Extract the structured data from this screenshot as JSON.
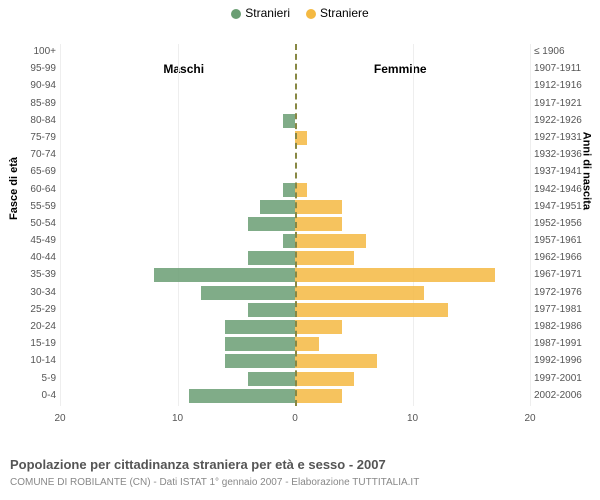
{
  "chart": {
    "type": "population-pyramid",
    "legend": [
      {
        "label": "Stranieri",
        "color": "#6a9e73"
      },
      {
        "label": "Straniere",
        "color": "#f4b942"
      }
    ],
    "side_titles": {
      "left": "Maschi",
      "right": "Femmine"
    },
    "y_left_label": "Fasce di età",
    "y_right_label": "Anni di nascita",
    "x_ticks": [
      20,
      10,
      0,
      10,
      20
    ],
    "x_max": 20,
    "colors": {
      "male_bar": "#6a9e73",
      "female_bar": "#f4b942",
      "grid": "#eeeeee",
      "center_line": "#888844",
      "background": "#ffffff",
      "text_muted": "#555555"
    },
    "bar_opacity": 0.85,
    "fontsize": {
      "tick": 10,
      "legend": 12,
      "side_title": 12,
      "caption": 13,
      "subcaption": 10,
      "axis_label": 11
    },
    "rows": [
      {
        "age": "100+",
        "birth": "≤ 1906",
        "m": 0,
        "f": 0
      },
      {
        "age": "95-99",
        "birth": "1907-1911",
        "m": 0,
        "f": 0
      },
      {
        "age": "90-94",
        "birth": "1912-1916",
        "m": 0,
        "f": 0
      },
      {
        "age": "85-89",
        "birth": "1917-1921",
        "m": 0,
        "f": 0
      },
      {
        "age": "80-84",
        "birth": "1922-1926",
        "m": 1,
        "f": 0
      },
      {
        "age": "75-79",
        "birth": "1927-1931",
        "m": 0,
        "f": 1
      },
      {
        "age": "70-74",
        "birth": "1932-1936",
        "m": 0,
        "f": 0
      },
      {
        "age": "65-69",
        "birth": "1937-1941",
        "m": 0,
        "f": 0
      },
      {
        "age": "60-64",
        "birth": "1942-1946",
        "m": 1,
        "f": 1
      },
      {
        "age": "55-59",
        "birth": "1947-1951",
        "m": 3,
        "f": 4
      },
      {
        "age": "50-54",
        "birth": "1952-1956",
        "m": 4,
        "f": 4
      },
      {
        "age": "45-49",
        "birth": "1957-1961",
        "m": 1,
        "f": 6
      },
      {
        "age": "40-44",
        "birth": "1962-1966",
        "m": 4,
        "f": 5
      },
      {
        "age": "35-39",
        "birth": "1967-1971",
        "m": 12,
        "f": 17
      },
      {
        "age": "30-34",
        "birth": "1972-1976",
        "m": 8,
        "f": 11
      },
      {
        "age": "25-29",
        "birth": "1977-1981",
        "m": 4,
        "f": 13
      },
      {
        "age": "20-24",
        "birth": "1982-1986",
        "m": 6,
        "f": 4
      },
      {
        "age": "15-19",
        "birth": "1987-1991",
        "m": 6,
        "f": 2
      },
      {
        "age": "10-14",
        "birth": "1992-1996",
        "m": 6,
        "f": 7
      },
      {
        "age": "5-9",
        "birth": "1997-2001",
        "m": 4,
        "f": 5
      },
      {
        "age": "0-4",
        "birth": "2002-2006",
        "m": 9,
        "f": 4
      }
    ],
    "caption": "Popolazione per cittadinanza straniera per età e sesso - 2007",
    "subcaption": "COMUNE DI ROBILANTE (CN) - Dati ISTAT 1° gennaio 2007 - Elaborazione TUTTITALIA.IT"
  }
}
